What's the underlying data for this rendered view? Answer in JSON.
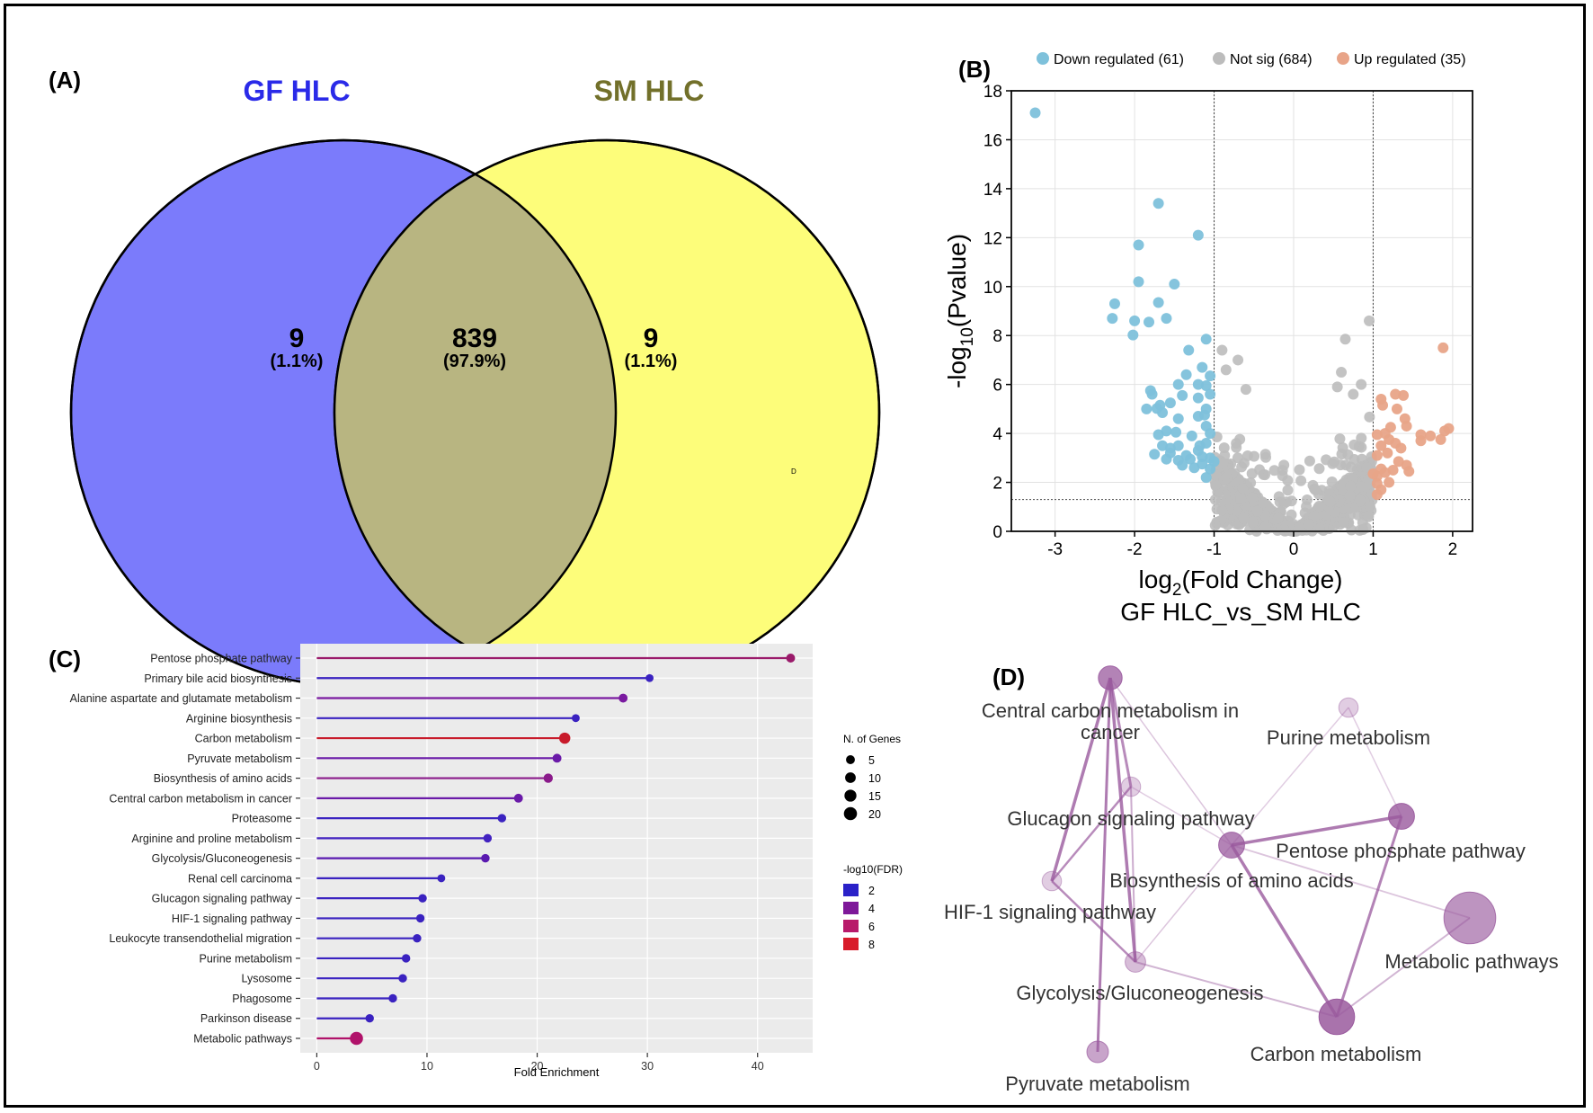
{
  "panels": {
    "a_label": "(A)",
    "b_label": "(B)",
    "c_label": "(C)",
    "d_label": "(D)"
  },
  "colors": {
    "venn_left": "#7b7bfb",
    "venn_right": "#fdfd7a",
    "venn_overlap": "#b8b581",
    "left_title": "#2a2ae8",
    "right_title": "#72702a",
    "down": "#7ec1db",
    "notsig": "#bcbcbc",
    "up": "#e8a488",
    "network_node": "#9a5a9e",
    "network_edge": "#9a5a9e"
  },
  "chart_data": [
    {
      "type": "venn",
      "sets": [
        "GF HLC",
        "SM HLC"
      ],
      "regions": [
        {
          "region": "GF HLC only",
          "count": "9",
          "percent": "(1.1%)",
          "value": 9
        },
        {
          "region": "both",
          "count": "839",
          "percent": "(97.9%)",
          "value": 839
        },
        {
          "region": "SM HLC only",
          "count": "9",
          "percent": "(1.1%)",
          "value": 9
        }
      ],
      "stray_mark": "D"
    },
    {
      "type": "scatter",
      "xlabel_main": "log",
      "xlabel_sub": "2",
      "xlabel_rest": "(Fold Change)",
      "xlabel2": "GF HLC_vs_SM HLC",
      "ylabel_main": "-log",
      "ylabel_sub": "10",
      "ylabel_rest": "(Pvalue)",
      "xlim": [
        -3.55,
        2.25
      ],
      "ylim": [
        0,
        18
      ],
      "xticks": [
        -3,
        -2,
        -1,
        0,
        1,
        2
      ],
      "yticks": [
        0,
        2,
        4,
        6,
        8,
        10,
        12,
        14,
        16,
        18
      ],
      "thresholds": {
        "x": [
          -1,
          1
        ],
        "y": 1.3
      },
      "grid": true,
      "legend": [
        {
          "label": "Down regulated (61)",
          "key": "down"
        },
        {
          "label": "Not sig (684)",
          "key": "notsig"
        },
        {
          "label": "Up regulated (35)",
          "key": "up"
        }
      ],
      "series": [
        {
          "name": "Down regulated (61)",
          "key": "down",
          "points": [
            [
              -3.25,
              17.1
            ],
            [
              -1.7,
              13.4
            ],
            [
              -1.95,
              11.7
            ],
            [
              -1.2,
              12.1
            ],
            [
              -1.95,
              10.2
            ],
            [
              -1.5,
              10.1
            ],
            [
              -2.25,
              9.3
            ],
            [
              -1.7,
              9.35
            ],
            [
              -1.6,
              8.7
            ],
            [
              -2.0,
              8.6
            ],
            [
              -2.28,
              8.7
            ],
            [
              -1.82,
              8.55
            ],
            [
              -2.02,
              8.02
            ],
            [
              -1.1,
              7.85
            ],
            [
              -1.32,
              7.4
            ],
            [
              -1.35,
              6.4
            ],
            [
              -1.15,
              6.7
            ],
            [
              -1.05,
              6.35
            ],
            [
              -1.1,
              5.95
            ],
            [
              -1.2,
              6.0
            ],
            [
              -1.45,
              6.0
            ],
            [
              -1.05,
              5.6
            ],
            [
              -1.2,
              5.45
            ],
            [
              -1.4,
              5.55
            ],
            [
              -1.78,
              5.6
            ],
            [
              -1.68,
              5.15
            ],
            [
              -1.55,
              5.25
            ],
            [
              -1.72,
              5.02
            ],
            [
              -1.85,
              5.0
            ],
            [
              -1.1,
              5.0
            ],
            [
              -1.12,
              4.75
            ],
            [
              -1.2,
              4.7
            ],
            [
              -1.45,
              4.6
            ],
            [
              -1.65,
              4.85
            ],
            [
              -1.1,
              4.3
            ],
            [
              -1.6,
              4.1
            ],
            [
              -1.48,
              4.05
            ],
            [
              -1.05,
              4.0
            ],
            [
              -1.28,
              3.9
            ],
            [
              -1.65,
              3.5
            ],
            [
              -1.55,
              3.4
            ],
            [
              -1.18,
              3.5
            ],
            [
              -1.1,
              3.6
            ],
            [
              -1.45,
              3.5
            ],
            [
              -1.35,
              3.1
            ],
            [
              -1.2,
              3.3
            ],
            [
              -1.05,
              3.0
            ],
            [
              -1.75,
              3.15
            ],
            [
              -1.55,
              3.2
            ],
            [
              -1.45,
              2.9
            ],
            [
              -1.25,
              2.6
            ],
            [
              -1.15,
              2.75
            ],
            [
              -1.05,
              2.55
            ],
            [
              -1.1,
              2.2
            ],
            [
              -1.3,
              2.95
            ],
            [
              -1.6,
              2.95
            ],
            [
              -1.4,
              2.7
            ],
            [
              -1.0,
              2.85
            ],
            [
              -1.15,
              3.05
            ],
            [
              -1.8,
              5.75
            ],
            [
              -1.7,
              3.95
            ]
          ]
        },
        {
          "name": "Up regulated (35)",
          "key": "up",
          "points": [
            [
              1.88,
              7.5
            ],
            [
              1.28,
              5.6
            ],
            [
              1.38,
              5.55
            ],
            [
              1.1,
              5.4
            ],
            [
              1.12,
              5.15
            ],
            [
              1.3,
              5.0
            ],
            [
              1.4,
              4.6
            ],
            [
              1.42,
              4.3
            ],
            [
              1.22,
              4.25
            ],
            [
              1.15,
              4.0
            ],
            [
              1.6,
              3.95
            ],
            [
              1.72,
              3.9
            ],
            [
              1.9,
              4.1
            ],
            [
              1.95,
              4.2
            ],
            [
              1.05,
              3.95
            ],
            [
              1.2,
              3.75
            ],
            [
              1.28,
              3.6
            ],
            [
              1.1,
              3.5
            ],
            [
              1.35,
              3.4
            ],
            [
              1.6,
              3.7
            ],
            [
              1.85,
              3.75
            ],
            [
              1.05,
              3.1
            ],
            [
              1.18,
              3.2
            ],
            [
              1.32,
              2.85
            ],
            [
              1.42,
              2.7
            ],
            [
              1.1,
              2.55
            ],
            [
              1.25,
              2.5
            ],
            [
              1.45,
              2.45
            ],
            [
              1.05,
              2.25
            ],
            [
              1.15,
              2.4
            ],
            [
              1.05,
              1.95
            ],
            [
              1.1,
              1.7
            ],
            [
              1.05,
              1.5
            ],
            [
              1.2,
              2.0
            ],
            [
              1.0,
              2.35
            ]
          ]
        }
      ]
    },
    {
      "type": "lollipop",
      "xlabel": "Fold Enrichment",
      "xlim": [
        -1.5,
        45
      ],
      "xticks": [
        0,
        10,
        20,
        30,
        40
      ],
      "size_legend_title": "N. of Genes",
      "size_legend": [
        5,
        10,
        15,
        20
      ],
      "color_legend_title": "-log10(FDR)",
      "color_legend": [
        {
          "value": 2,
          "color": "#2a21c8"
        },
        {
          "value": 4,
          "color": "#7e1899"
        },
        {
          "value": 6,
          "color": "#b81a6a"
        },
        {
          "value": 8,
          "color": "#d81b2a"
        }
      ],
      "rows": [
        {
          "label": "Pentose phosphate pathway",
          "value": 43,
          "genes": 5,
          "fdr": 5,
          "color": "#9a1a6a"
        },
        {
          "label": "Primary bile acid biosynthesis",
          "value": 30.2,
          "genes": 3,
          "fdr": 2,
          "color": "#3a22c0"
        },
        {
          "label": "Alanine aspartate and glutamate metabolism",
          "value": 27.8,
          "genes": 5,
          "fdr": 4,
          "color": "#7a1aa0"
        },
        {
          "label": "Arginine biosynthesis",
          "value": 23.5,
          "genes": 3,
          "fdr": 2,
          "color": "#3a22c0"
        },
        {
          "label": "Carbon metabolism",
          "value": 22.5,
          "genes": 12,
          "fdr": 8,
          "color": "#c81a2a"
        },
        {
          "label": "Pyruvate metabolism",
          "value": 21.8,
          "genes": 5,
          "fdr": 4,
          "color": "#6a1aa8"
        },
        {
          "label": "Biosynthesis of amino acids",
          "value": 21.0,
          "genes": 6,
          "fdr": 5,
          "color": "#8a1a8a"
        },
        {
          "label": "Central carbon metabolism in cancer",
          "value": 18.3,
          "genes": 5,
          "fdr": 4,
          "color": "#6a1aa8"
        },
        {
          "label": "Proteasome",
          "value": 16.8,
          "genes": 4,
          "fdr": 2,
          "color": "#3a22c0"
        },
        {
          "label": "Arginine and proline metabolism",
          "value": 15.5,
          "genes": 4,
          "fdr": 2,
          "color": "#4222c0"
        },
        {
          "label": "Glycolysis/Gluconeogenesis",
          "value": 15.3,
          "genes": 4,
          "fdr": 3,
          "color": "#5a1ab0"
        },
        {
          "label": "Renal cell carcinoma",
          "value": 11.3,
          "genes": 3,
          "fdr": 2,
          "color": "#3a22c0"
        },
        {
          "label": "Glucagon signaling pathway",
          "value": 9.6,
          "genes": 4,
          "fdr": 2,
          "color": "#3a22c0"
        },
        {
          "label": "HIF-1 signaling pathway",
          "value": 9.4,
          "genes": 4,
          "fdr": 2,
          "color": "#3a22c0"
        },
        {
          "label": "Leukocyte transendothelial migration",
          "value": 9.1,
          "genes": 4,
          "fdr": 2,
          "color": "#3a22c0"
        },
        {
          "label": "Purine metabolism",
          "value": 8.1,
          "genes": 4,
          "fdr": 2,
          "color": "#3a22c0"
        },
        {
          "label": "Lysosome",
          "value": 7.8,
          "genes": 4,
          "fdr": 2,
          "color": "#3a22c0"
        },
        {
          "label": "Phagosome",
          "value": 6.9,
          "genes": 4,
          "fdr": 2,
          "color": "#3a22c0"
        },
        {
          "label": "Parkinson disease",
          "value": 4.8,
          "genes": 4,
          "fdr": 2,
          "color": "#3a22c0"
        },
        {
          "label": "Metabolic pathways",
          "value": 3.6,
          "genes": 20,
          "fdr": 6,
          "color": "#b0126a"
        }
      ]
    },
    {
      "type": "network",
      "nodes": [
        {
          "id": "ccmc",
          "label1": "Central carbon metabolism in",
          "label2": "cancer",
          "size": 1.1,
          "alpha": 0.75
        },
        {
          "id": "purine",
          "label1": "Purine metabolism",
          "label2": "",
          "size": 0.9,
          "alpha": 0.3
        },
        {
          "id": "glucagon",
          "label1": "Glucagon signaling pathway",
          "label2": "",
          "size": 0.9,
          "alpha": 0.3
        },
        {
          "id": "ppp",
          "label1": "Pentose phosphate pathway",
          "label2": "",
          "size": 1.2,
          "alpha": 0.8
        },
        {
          "id": "biosyn",
          "label1": "Biosynthesis of amino acids",
          "label2": "",
          "size": 1.2,
          "alpha": 0.75
        },
        {
          "id": "hif",
          "label1": "HIF-1 signaling pathway",
          "label2": "",
          "size": 0.9,
          "alpha": 0.3
        },
        {
          "id": "metabolic",
          "label1": "Metabolic pathways",
          "label2": "",
          "size": 2.4,
          "alpha": 0.65
        },
        {
          "id": "glycolysis",
          "label1": "Glycolysis/Gluconeogenesis",
          "label2": "",
          "size": 0.95,
          "alpha": 0.4
        },
        {
          "id": "carbon",
          "label1": "Carbon metabolism",
          "label2": "",
          "size": 1.65,
          "alpha": 0.85
        },
        {
          "id": "pyruvate",
          "label1": "Pyruvate metabolism",
          "label2": "",
          "size": 1.0,
          "alpha": 0.55
        }
      ],
      "edges": [
        {
          "a": "ccmc",
          "b": "hif",
          "w": 3.5,
          "alpha": 0.8
        },
        {
          "a": "ccmc",
          "b": "glycolysis",
          "w": 3.5,
          "alpha": 0.8
        },
        {
          "a": "ccmc",
          "b": "glucagon",
          "w": 3.0,
          "alpha": 0.7
        },
        {
          "a": "ccmc",
          "b": "biosyn",
          "w": 1.5,
          "alpha": 0.35
        },
        {
          "a": "ccmc",
          "b": "pyruvate",
          "w": 3.0,
          "alpha": 0.8
        },
        {
          "a": "glucagon",
          "b": "hif",
          "w": 2.5,
          "alpha": 0.7
        },
        {
          "a": "glucagon",
          "b": "glycolysis",
          "w": 2.0,
          "alpha": 0.5
        },
        {
          "a": "hif",
          "b": "glycolysis",
          "w": 2.5,
          "alpha": 0.7
        },
        {
          "a": "biosyn",
          "b": "ppp",
          "w": 3.5,
          "alpha": 0.8
        },
        {
          "a": "biosyn",
          "b": "carbon",
          "w": 3.5,
          "alpha": 0.8
        },
        {
          "a": "biosyn",
          "b": "glycolysis",
          "w": 1.5,
          "alpha": 0.35
        },
        {
          "a": "biosyn",
          "b": "metabolic",
          "w": 1.8,
          "alpha": 0.35
        },
        {
          "a": "biosyn",
          "b": "glucagon",
          "w": 1.5,
          "alpha": 0.3
        },
        {
          "a": "purine",
          "b": "ppp",
          "w": 1.5,
          "alpha": 0.3
        },
        {
          "a": "purine",
          "b": "biosyn",
          "w": 1.5,
          "alpha": 0.3
        },
        {
          "a": "ppp",
          "b": "carbon",
          "w": 3.0,
          "alpha": 0.75
        },
        {
          "a": "metabolic",
          "b": "carbon",
          "w": 2.0,
          "alpha": 0.45
        },
        {
          "a": "glycolysis",
          "b": "carbon",
          "w": 2.0,
          "alpha": 0.45
        }
      ]
    }
  ]
}
